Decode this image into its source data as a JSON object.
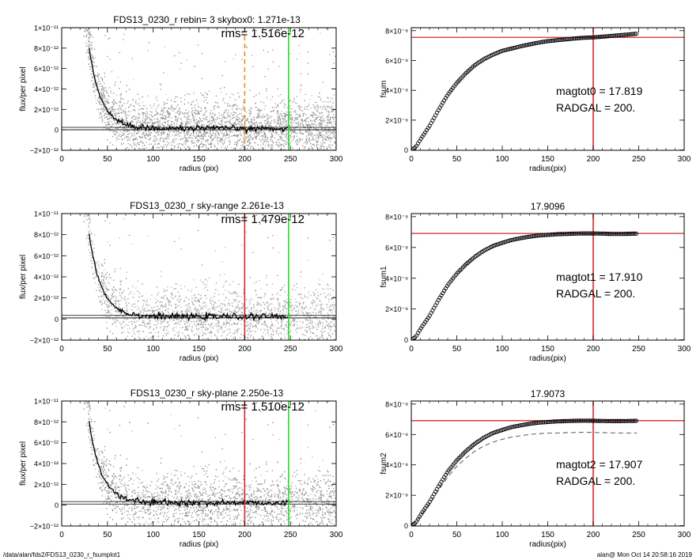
{
  "footer": {
    "left": "/data/alan/fds2/FDS13_0230_r_fsumplot1",
    "right": "alan@  Mon Oct 14 20:58:16 2019"
  },
  "colors": {
    "red": "#d42a2a",
    "green": "#22dd22",
    "orange": "#e8902a",
    "scatter": "#a8a8a8",
    "profile": "#000000"
  },
  "chart_data": [
    {
      "id": "profile-1",
      "type": "scatter",
      "title": "FDS13_0230_r rebin= 3    skybox0:  1.271e-13",
      "annotation": "rms= 1.516e-12",
      "xlabel": "radius (pix)",
      "ylabel": "flux/per pixel",
      "xlim": [
        0,
        300
      ],
      "ylim": [
        -2e-12,
        1e-11
      ],
      "xticks": [
        "0",
        "50",
        "100",
        "150",
        "200",
        "250",
        "300"
      ],
      "yticks": [
        {
          "value": -2e-12,
          "label": "−2×10⁻¹²"
        },
        {
          "value": 0,
          "label": "0"
        },
        {
          "value": 2e-12,
          "label": "2×10⁻¹²"
        },
        {
          "value": 4e-12,
          "label": "4×10⁻¹²"
        },
        {
          "value": 6e-12,
          "label": "6×10⁻¹²"
        },
        {
          "value": 8e-12,
          "label": "8×10⁻¹²"
        },
        {
          "value": 1e-11,
          "label": "1×10⁻¹¹"
        }
      ],
      "sky_level": 1.271e-13,
      "vlines": [
        {
          "x": 200,
          "color": "orange",
          "style": "dashed"
        },
        {
          "x": 248,
          "color": "green",
          "style": "solid"
        }
      ]
    },
    {
      "id": "curve-1",
      "type": "line",
      "title": "",
      "ylabel": "fsum",
      "xlabel": "radius(pix)",
      "xlim": [
        0,
        300
      ],
      "ylim": [
        -2e-10,
        8.2e-08
      ],
      "xticks": [
        "0",
        "50",
        "100",
        "150",
        "200",
        "250",
        "300"
      ],
      "yticks": [
        {
          "value": 0,
          "label": "0"
        },
        {
          "value": 2e-08,
          "label": "2×10⁻⁸"
        },
        {
          "value": 4e-08,
          "label": "4×10⁻⁸"
        },
        {
          "value": 6e-08,
          "label": "6×10⁻⁸"
        },
        {
          "value": 8e-08,
          "label": "8×10⁻⁸"
        }
      ],
      "x": [
        0,
        5,
        10,
        20,
        30,
        40,
        50,
        60,
        70,
        80,
        90,
        100,
        110,
        120,
        130,
        140,
        150,
        160,
        170,
        180,
        190,
        200,
        210,
        220,
        230,
        240,
        248
      ],
      "y": [
        0,
        2e-09,
        7e-09,
        1.6e-08,
        2.7e-08,
        3.7e-08,
        4.5e-08,
        5.15e-08,
        5.7e-08,
        6.1e-08,
        6.4e-08,
        6.65e-08,
        6.8e-08,
        6.95e-08,
        7.08e-08,
        7.2e-08,
        7.3e-08,
        7.36e-08,
        7.42e-08,
        7.48e-08,
        7.53e-08,
        7.55e-08,
        7.6e-08,
        7.65e-08,
        7.7e-08,
        7.75e-08,
        7.8e-08
      ],
      "hline": 7.55e-08,
      "vline": 200,
      "text": [
        "magtot0 =  17.819",
        "RADGAL =    200."
      ]
    },
    {
      "id": "profile-2",
      "type": "scatter",
      "title": "FDS13_0230_r sky-range  2.261e-13",
      "annotation": "rms= 1.479e-12",
      "xlabel": "radius (pix)",
      "ylabel": "flux/per pixel",
      "xlim": [
        0,
        300
      ],
      "ylim": [
        -2e-12,
        1e-11
      ],
      "xticks": [
        "0",
        "50",
        "100",
        "150",
        "200",
        "250",
        "300"
      ],
      "yticks": [
        {
          "value": -2e-12,
          "label": "−2×10⁻¹²"
        },
        {
          "value": 0,
          "label": "0"
        },
        {
          "value": 2e-12,
          "label": "2×10⁻¹²"
        },
        {
          "value": 4e-12,
          "label": "4×10⁻¹²"
        },
        {
          "value": 6e-12,
          "label": "6×10⁻¹²"
        },
        {
          "value": 8e-12,
          "label": "8×10⁻¹²"
        },
        {
          "value": 1e-11,
          "label": "1×10⁻¹¹"
        }
      ],
      "sky_level": 2.261e-13,
      "vlines": [
        {
          "x": 200,
          "color": "red",
          "style": "solid"
        },
        {
          "x": 248,
          "color": "green",
          "style": "solid"
        }
      ]
    },
    {
      "id": "curve-2",
      "type": "line",
      "title": "17.9096",
      "ylabel": "fsum1",
      "xlabel": "radius(pix)",
      "xlim": [
        0,
        300
      ],
      "ylim": [
        -2e-10,
        8.2e-08
      ],
      "xticks": [
        "0",
        "50",
        "100",
        "150",
        "200",
        "250",
        "300"
      ],
      "yticks": [
        {
          "value": 0,
          "label": "0"
        },
        {
          "value": 2e-08,
          "label": "2×10⁻⁸"
        },
        {
          "value": 4e-08,
          "label": "4×10⁻⁸"
        },
        {
          "value": 6e-08,
          "label": "6×10⁻⁸"
        },
        {
          "value": 8e-08,
          "label": "8×10⁻⁸"
        }
      ],
      "x": [
        0,
        5,
        10,
        20,
        30,
        40,
        50,
        60,
        70,
        80,
        90,
        100,
        110,
        120,
        130,
        140,
        150,
        160,
        170,
        180,
        190,
        200,
        210,
        220,
        230,
        240,
        248
      ],
      "y": [
        0,
        2e-09,
        7e-09,
        1.55e-08,
        2.6e-08,
        3.55e-08,
        4.3e-08,
        4.9e-08,
        5.4e-08,
        5.8e-08,
        6.1e-08,
        6.3e-08,
        6.48e-08,
        6.6e-08,
        6.7e-08,
        6.78e-08,
        6.82e-08,
        6.86e-08,
        6.88e-08,
        6.9e-08,
        6.91e-08,
        6.91e-08,
        6.9e-08,
        6.88e-08,
        6.88e-08,
        6.89e-08,
        6.9e-08
      ],
      "hline": 6.91e-08,
      "vline": 200,
      "text": [
        "magtot1 =  17.910",
        "RADGAL =    200."
      ]
    },
    {
      "id": "profile-3",
      "type": "scatter",
      "title": "FDS13_0230_r sky-plane  2.250e-13",
      "annotation": "rms= 1.510e-12",
      "xlabel": "radius (pix)",
      "ylabel": "flux/per pixel",
      "xlim": [
        0,
        300
      ],
      "ylim": [
        -2e-12,
        1e-11
      ],
      "xticks": [
        "0",
        "50",
        "100",
        "150",
        "200",
        "250",
        "300"
      ],
      "yticks": [
        {
          "value": -2e-12,
          "label": "−2×10⁻¹²"
        },
        {
          "value": 0,
          "label": "0"
        },
        {
          "value": 2e-12,
          "label": "2×10⁻¹²"
        },
        {
          "value": 4e-12,
          "label": "4×10⁻¹²"
        },
        {
          "value": 6e-12,
          "label": "6×10⁻¹²"
        },
        {
          "value": 8e-12,
          "label": "8×10⁻¹²"
        },
        {
          "value": 1e-11,
          "label": "1×10⁻¹¹"
        }
      ],
      "sky_level": 2.25e-13,
      "vlines": [
        {
          "x": 200,
          "color": "red",
          "style": "solid"
        },
        {
          "x": 248,
          "color": "green",
          "style": "solid"
        }
      ]
    },
    {
      "id": "curve-3",
      "type": "line",
      "title": "17.9073",
      "ylabel": "fsum2",
      "xlabel": "radius(pix)",
      "xlim": [
        0,
        300
      ],
      "ylim": [
        -2e-10,
        8.2e-08
      ],
      "xticks": [
        "0",
        "50",
        "100",
        "150",
        "200",
        "250",
        "300"
      ],
      "yticks": [
        {
          "value": 0,
          "label": "0"
        },
        {
          "value": 2e-08,
          "label": "2×10⁻⁸"
        },
        {
          "value": 4e-08,
          "label": "4×10⁻⁸"
        },
        {
          "value": 6e-08,
          "label": "6×10⁻⁸"
        },
        {
          "value": 8e-08,
          "label": "8×10⁻⁸"
        }
      ],
      "x": [
        0,
        5,
        10,
        20,
        30,
        40,
        50,
        60,
        70,
        80,
        90,
        100,
        110,
        120,
        130,
        140,
        150,
        160,
        170,
        180,
        190,
        200,
        210,
        220,
        230,
        240,
        248
      ],
      "y": [
        0,
        2e-09,
        7e-09,
        1.55e-08,
        2.6e-08,
        3.55e-08,
        4.3e-08,
        4.9e-08,
        5.4e-08,
        5.8e-08,
        6.1e-08,
        6.3e-08,
        6.48e-08,
        6.6e-08,
        6.7e-08,
        6.78e-08,
        6.82e-08,
        6.86e-08,
        6.88e-08,
        6.9e-08,
        6.91e-08,
        6.9e-08,
        6.89e-08,
        6.88e-08,
        6.88e-08,
        6.89e-08,
        6.9e-08
      ],
      "dashed_x": [
        0,
        10,
        20,
        30,
        40,
        50,
        60,
        70,
        80,
        90,
        100,
        110,
        120,
        130,
        140,
        150,
        160,
        170,
        180,
        190,
        200,
        210,
        220,
        230,
        240,
        248
      ],
      "dashed_y": [
        0,
        6e-09,
        1.4e-08,
        2.35e-08,
        3.2e-08,
        3.9e-08,
        4.45e-08,
        4.9e-08,
        5.25e-08,
        5.5e-08,
        5.68e-08,
        5.82e-08,
        5.92e-08,
        6e-08,
        6.05e-08,
        6.08e-08,
        6.1e-08,
        6.12e-08,
        6.13e-08,
        6.14e-08,
        6.13e-08,
        6.12e-08,
        6.11e-08,
        6.1e-08,
        6.1e-08,
        6.1e-08
      ],
      "hline": 6.91e-08,
      "vline": 200,
      "text": [
        "magtot2 =  17.907",
        "RADGAL =    200."
      ]
    }
  ]
}
